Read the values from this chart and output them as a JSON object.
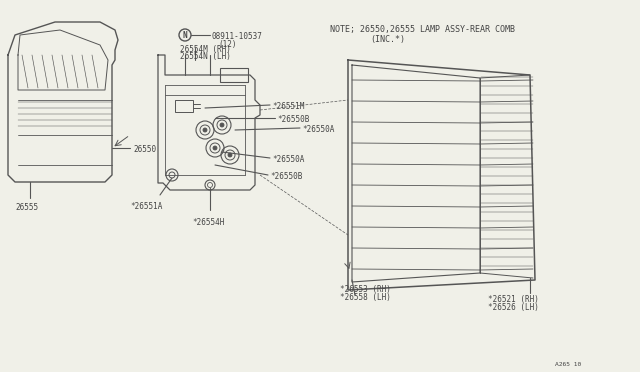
{
  "bg_color": "#f0f0e8",
  "line_color": "#555555",
  "text_color": "#444444",
  "note_line1": "NOTE; 26550,26555 LAMP ASSY-REAR COMB",
  "note_line2": "(INC.*)",
  "footer": "A265 10",
  "font_size_label": 5.5,
  "font_size_note": 6.0
}
